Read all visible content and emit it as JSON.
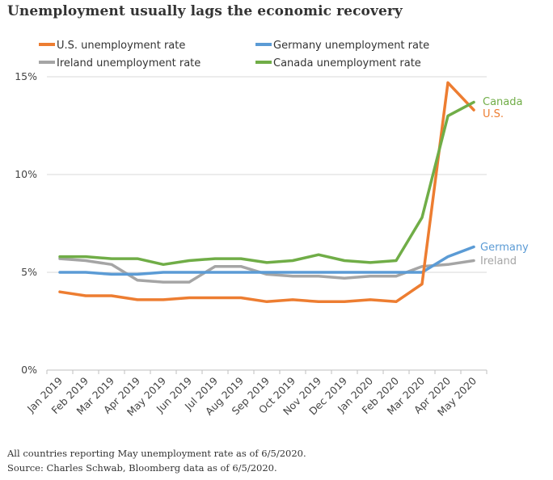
{
  "chart_data": {
    "type": "line",
    "title": "Unemployment usually lags the economic recovery",
    "categories": [
      "Jan 2019",
      "Feb 2019",
      "Mar 2019",
      "Apr 2019",
      "May 2019",
      "Jun 2019",
      "Jul 2019",
      "Aug 2019",
      "Sep 2019",
      "Oct 2019",
      "Nov 2019",
      "Dec 2019",
      "Jan 2020",
      "Feb 2020",
      "Mar 2020",
      "Apr 2020",
      "May 2020"
    ],
    "ylim": [
      0,
      15
    ],
    "yticks": [
      0,
      5,
      10,
      15
    ],
    "ytick_labels": [
      "0%",
      "5%",
      "10%",
      "15%"
    ],
    "legend_position": "top",
    "series": [
      {
        "name": "U.S. unemployment rate",
        "end_label": "U.S.",
        "color": "#ED7D31",
        "values": [
          4.0,
          3.8,
          3.8,
          3.6,
          3.6,
          3.7,
          3.7,
          3.7,
          3.5,
          3.6,
          3.5,
          3.5,
          3.6,
          3.5,
          4.4,
          14.7,
          13.3
        ]
      },
      {
        "name": "Germany unemployment rate",
        "end_label": "Germany",
        "color": "#5B9BD5",
        "values": [
          5.0,
          5.0,
          4.9,
          4.9,
          5.0,
          5.0,
          5.0,
          5.0,
          5.0,
          5.0,
          5.0,
          5.0,
          5.0,
          5.0,
          5.0,
          5.8,
          6.3
        ]
      },
      {
        "name": "Ireland unemployment rate",
        "end_label": "Ireland",
        "color": "#A5A5A5",
        "values": [
          5.7,
          5.6,
          5.4,
          4.6,
          4.5,
          4.5,
          5.3,
          5.3,
          4.9,
          4.8,
          4.8,
          4.7,
          4.8,
          4.8,
          5.3,
          5.4,
          5.6
        ]
      },
      {
        "name": "Canada unemployment rate",
        "end_label": "Canada",
        "color": "#70AD47",
        "values": [
          5.8,
          5.8,
          5.7,
          5.7,
          5.4,
          5.6,
          5.7,
          5.7,
          5.5,
          5.6,
          5.9,
          5.6,
          5.5,
          5.6,
          7.8,
          13.0,
          13.7
        ]
      }
    ]
  },
  "footnotes": {
    "line1": "All countries reporting May unemployment rate as of 6/5/2020.",
    "line2": "Source: Charles Schwab, Bloomberg data as of 6/5/2020."
  }
}
